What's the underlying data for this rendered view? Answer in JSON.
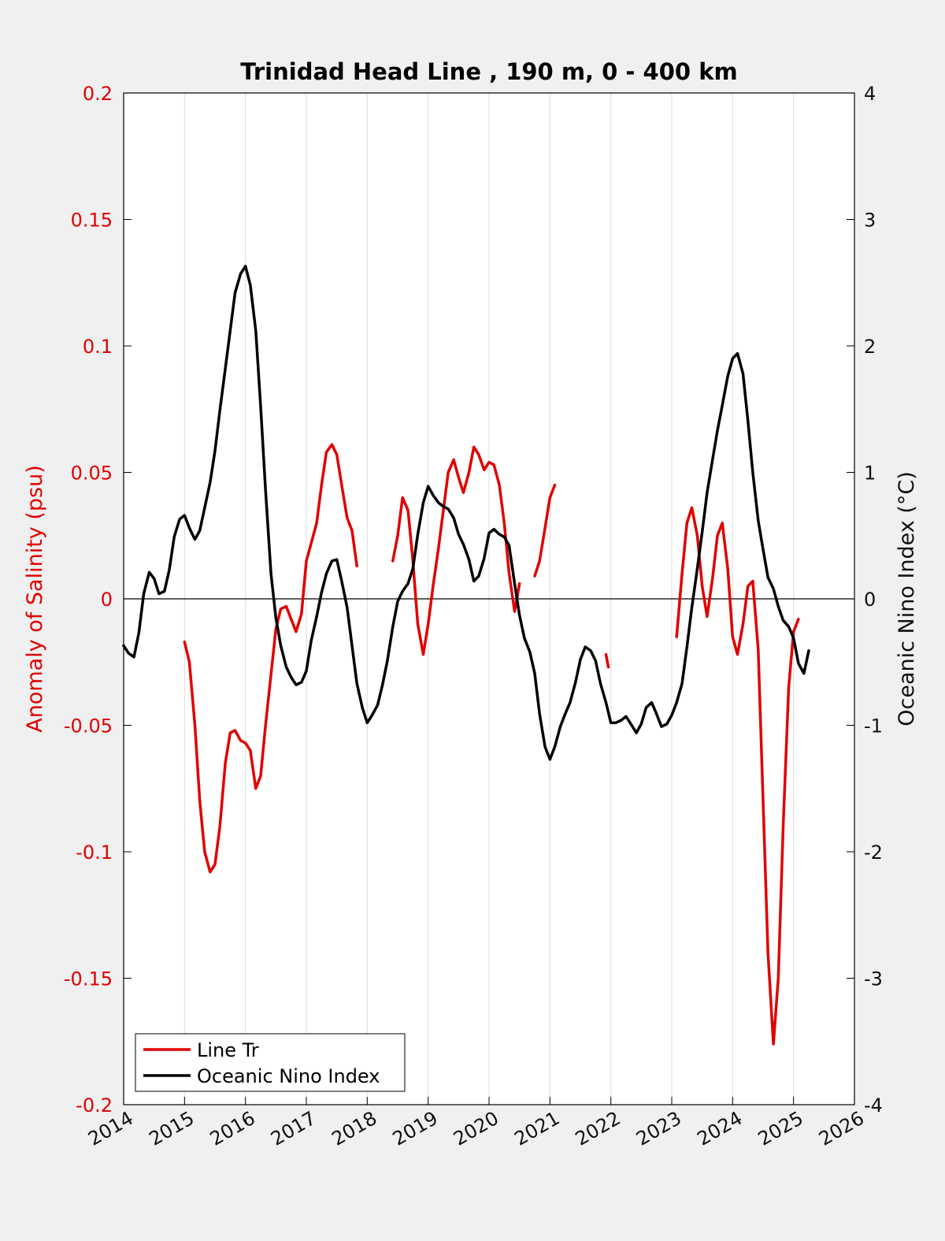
{
  "chart_data": {
    "type": "line",
    "title": "Trinidad Head Line , 190 m, 0 - 400 km",
    "ylabel_left": "Anomaly of Salinity (psu)",
    "ylabel_right": "Oceanic Nino Index (°C)",
    "xlim": [
      2014,
      2026
    ],
    "ylim_left": [
      -0.2,
      0.2
    ],
    "ylim_right": [
      -4,
      4
    ],
    "x_ticks": [
      "2014",
      "2015",
      "2016",
      "2017",
      "2018",
      "2019",
      "2020",
      "2021",
      "2022",
      "2023",
      "2024",
      "2025",
      "2026"
    ],
    "y_left_ticks": [
      "0.2",
      "0.15",
      "0.1",
      "0.05",
      "0",
      "-0.05",
      "-0.1",
      "-0.15",
      "-0.2"
    ],
    "y_right_ticks": [
      "4",
      "3",
      "2",
      "1",
      "0",
      "-1",
      "-2",
      "-3",
      "-4"
    ],
    "grid": "vertical",
    "legend_position": "bottom-left",
    "colors": {
      "salinity": "#e00000",
      "oni": "#000000",
      "left_axis": "#e00000"
    },
    "series": [
      {
        "name": "Line Tr",
        "axis": "left",
        "segments": [
          [
            [
              2015.0,
              -0.017
            ],
            [
              2015.08,
              -0.025
            ],
            [
              2015.17,
              -0.05
            ],
            [
              2015.25,
              -0.08
            ],
            [
              2015.33,
              -0.1
            ],
            [
              2015.42,
              -0.108
            ],
            [
              2015.5,
              -0.105
            ],
            [
              2015.58,
              -0.09
            ],
            [
              2015.67,
              -0.065
            ],
            [
              2015.75,
              -0.053
            ],
            [
              2015.83,
              -0.052
            ],
            [
              2015.92,
              -0.056
            ],
            [
              2016.0,
              -0.057
            ],
            [
              2016.08,
              -0.06
            ],
            [
              2016.17,
              -0.075
            ],
            [
              2016.25,
              -0.07
            ],
            [
              2016.33,
              -0.05
            ],
            [
              2016.42,
              -0.03
            ],
            [
              2016.5,
              -0.012
            ],
            [
              2016.58,
              -0.004
            ],
            [
              2016.67,
              -0.003
            ],
            [
              2016.75,
              -0.008
            ],
            [
              2016.83,
              -0.013
            ],
            [
              2016.92,
              -0.006
            ],
            [
              2017.0,
              0.015
            ],
            [
              2017.08,
              0.022
            ],
            [
              2017.17,
              0.03
            ],
            [
              2017.25,
              0.045
            ],
            [
              2017.33,
              0.058
            ],
            [
              2017.42,
              0.061
            ],
            [
              2017.5,
              0.057
            ],
            [
              2017.58,
              0.045
            ],
            [
              2017.67,
              0.032
            ],
            [
              2017.75,
              0.027
            ],
            [
              2017.83,
              0.013
            ]
          ],
          [
            [
              2018.42,
              0.015
            ],
            [
              2018.5,
              0.025
            ],
            [
              2018.58,
              0.04
            ],
            [
              2018.67,
              0.035
            ],
            [
              2018.75,
              0.015
            ],
            [
              2018.83,
              -0.01
            ],
            [
              2018.92,
              -0.022
            ],
            [
              2019.0,
              -0.01
            ],
            [
              2019.08,
              0.005
            ],
            [
              2019.17,
              0.02
            ],
            [
              2019.25,
              0.035
            ],
            [
              2019.33,
              0.05
            ],
            [
              2019.42,
              0.055
            ],
            [
              2019.5,
              0.048
            ],
            [
              2019.58,
              0.042
            ],
            [
              2019.67,
              0.05
            ],
            [
              2019.75,
              0.06
            ],
            [
              2019.83,
              0.057
            ],
            [
              2019.92,
              0.051
            ],
            [
              2020.0,
              0.054
            ],
            [
              2020.08,
              0.053
            ],
            [
              2020.17,
              0.045
            ],
            [
              2020.25,
              0.03
            ],
            [
              2020.33,
              0.01
            ],
            [
              2020.42,
              -0.005
            ],
            [
              2020.5,
              0.006
            ]
          ],
          [
            [
              2020.75,
              0.009
            ],
            [
              2020.83,
              0.015
            ],
            [
              2020.92,
              0.028
            ],
            [
              2021.0,
              0.04
            ],
            [
              2021.08,
              0.045
            ]
          ],
          [
            [
              2021.92,
              -0.022
            ],
            [
              2021.96,
              -0.027
            ]
          ],
          [
            [
              2023.08,
              -0.015
            ],
            [
              2023.17,
              0.01
            ],
            [
              2023.25,
              0.03
            ],
            [
              2023.33,
              0.036
            ],
            [
              2023.42,
              0.025
            ],
            [
              2023.5,
              0.005
            ],
            [
              2023.58,
              -0.007
            ],
            [
              2023.67,
              0.008
            ],
            [
              2023.75,
              0.025
            ],
            [
              2023.83,
              0.03
            ],
            [
              2023.92,
              0.012
            ],
            [
              2024.0,
              -0.015
            ],
            [
              2024.08,
              -0.022
            ],
            [
              2024.17,
              -0.01
            ],
            [
              2024.25,
              0.005
            ],
            [
              2024.33,
              0.007
            ],
            [
              2024.42,
              -0.02
            ],
            [
              2024.5,
              -0.08
            ],
            [
              2024.58,
              -0.14
            ],
            [
              2024.67,
              -0.176
            ],
            [
              2024.75,
              -0.15
            ],
            [
              2024.83,
              -0.09
            ],
            [
              2024.92,
              -0.035
            ],
            [
              2025.0,
              -0.013
            ],
            [
              2025.08,
              -0.008
            ]
          ]
        ]
      },
      {
        "name": "Oceanic Nino Index",
        "axis": "right",
        "segments": [
          [
            [
              2014.0,
              -0.37
            ],
            [
              2014.08,
              -0.43
            ],
            [
              2014.17,
              -0.46
            ],
            [
              2014.25,
              -0.27
            ],
            [
              2014.33,
              0.04
            ],
            [
              2014.42,
              0.21
            ],
            [
              2014.5,
              0.16
            ],
            [
              2014.58,
              0.04
            ],
            [
              2014.67,
              0.06
            ],
            [
              2014.75,
              0.23
            ],
            [
              2014.83,
              0.49
            ],
            [
              2014.92,
              0.63
            ],
            [
              2015.0,
              0.66
            ],
            [
              2015.08,
              0.56
            ],
            [
              2015.17,
              0.47
            ],
            [
              2015.25,
              0.54
            ],
            [
              2015.33,
              0.72
            ],
            [
              2015.42,
              0.92
            ],
            [
              2015.5,
              1.17
            ],
            [
              2015.58,
              1.49
            ],
            [
              2015.67,
              1.82
            ],
            [
              2015.75,
              2.12
            ],
            [
              2015.83,
              2.42
            ],
            [
              2015.92,
              2.57
            ],
            [
              2016.0,
              2.63
            ],
            [
              2016.08,
              2.48
            ],
            [
              2016.17,
              2.12
            ],
            [
              2016.25,
              1.52
            ],
            [
              2016.33,
              0.86
            ],
            [
              2016.42,
              0.2
            ],
            [
              2016.5,
              -0.15
            ],
            [
              2016.58,
              -0.37
            ],
            [
              2016.67,
              -0.54
            ],
            [
              2016.75,
              -0.62
            ],
            [
              2016.83,
              -0.68
            ],
            [
              2016.92,
              -0.66
            ],
            [
              2017.0,
              -0.57
            ],
            [
              2017.08,
              -0.33
            ],
            [
              2017.17,
              -0.14
            ],
            [
              2017.25,
              0.05
            ],
            [
              2017.33,
              0.2
            ],
            [
              2017.42,
              0.3
            ],
            [
              2017.5,
              0.31
            ],
            [
              2017.58,
              0.14
            ],
            [
              2017.67,
              -0.07
            ],
            [
              2017.75,
              -0.37
            ],
            [
              2017.83,
              -0.67
            ],
            [
              2017.92,
              -0.86
            ],
            [
              2018.0,
              -0.98
            ],
            [
              2018.08,
              -0.92
            ],
            [
              2018.17,
              -0.84
            ],
            [
              2018.25,
              -0.68
            ],
            [
              2018.33,
              -0.49
            ],
            [
              2018.42,
              -0.22
            ],
            [
              2018.5,
              -0.02
            ],
            [
              2018.58,
              0.06
            ],
            [
              2018.67,
              0.12
            ],
            [
              2018.75,
              0.24
            ],
            [
              2018.83,
              0.51
            ],
            [
              2018.92,
              0.76
            ],
            [
              2019.0,
              0.89
            ],
            [
              2019.08,
              0.82
            ],
            [
              2019.17,
              0.76
            ],
            [
              2019.25,
              0.73
            ],
            [
              2019.33,
              0.71
            ],
            [
              2019.42,
              0.64
            ],
            [
              2019.5,
              0.51
            ],
            [
              2019.58,
              0.43
            ],
            [
              2019.67,
              0.31
            ],
            [
              2019.75,
              0.14
            ],
            [
              2019.83,
              0.18
            ],
            [
              2019.92,
              0.32
            ],
            [
              2020.0,
              0.52
            ],
            [
              2020.08,
              0.55
            ],
            [
              2020.17,
              0.51
            ],
            [
              2020.25,
              0.49
            ],
            [
              2020.33,
              0.42
            ],
            [
              2020.42,
              0.12
            ],
            [
              2020.5,
              -0.13
            ],
            [
              2020.58,
              -0.31
            ],
            [
              2020.67,
              -0.42
            ],
            [
              2020.75,
              -0.59
            ],
            [
              2020.83,
              -0.91
            ],
            [
              2020.92,
              -1.17
            ],
            [
              2021.0,
              -1.27
            ],
            [
              2021.08,
              -1.17
            ],
            [
              2021.17,
              -1.01
            ],
            [
              2021.25,
              -0.91
            ],
            [
              2021.33,
              -0.82
            ],
            [
              2021.42,
              -0.66
            ],
            [
              2021.5,
              -0.48
            ],
            [
              2021.58,
              -0.38
            ],
            [
              2021.67,
              -0.41
            ],
            [
              2021.75,
              -0.49
            ],
            [
              2021.83,
              -0.67
            ],
            [
              2021.92,
              -0.82
            ],
            [
              2022.0,
              -0.98
            ],
            [
              2022.08,
              -0.98
            ],
            [
              2022.17,
              -0.96
            ],
            [
              2022.25,
              -0.93
            ],
            [
              2022.33,
              -0.99
            ],
            [
              2022.42,
              -1.06
            ],
            [
              2022.5,
              -0.99
            ],
            [
              2022.58,
              -0.86
            ],
            [
              2022.67,
              -0.82
            ],
            [
              2022.75,
              -0.91
            ],
            [
              2022.83,
              -1.01
            ],
            [
              2022.92,
              -0.99
            ],
            [
              2023.0,
              -0.92
            ],
            [
              2023.08,
              -0.82
            ],
            [
              2023.17,
              -0.67
            ],
            [
              2023.25,
              -0.38
            ],
            [
              2023.33,
              -0.07
            ],
            [
              2023.42,
              0.24
            ],
            [
              2023.5,
              0.53
            ],
            [
              2023.58,
              0.84
            ],
            [
              2023.67,
              1.1
            ],
            [
              2023.75,
              1.33
            ],
            [
              2023.83,
              1.53
            ],
            [
              2023.92,
              1.76
            ],
            [
              2024.0,
              1.9
            ],
            [
              2024.08,
              1.94
            ],
            [
              2024.17,
              1.78
            ],
            [
              2024.25,
              1.41
            ],
            [
              2024.33,
              1.0
            ],
            [
              2024.42,
              0.62
            ],
            [
              2024.5,
              0.39
            ],
            [
              2024.58,
              0.17
            ],
            [
              2024.67,
              0.08
            ],
            [
              2024.75,
              -0.06
            ],
            [
              2024.83,
              -0.17
            ],
            [
              2024.92,
              -0.22
            ],
            [
              2025.0,
              -0.31
            ],
            [
              2025.08,
              -0.51
            ],
            [
              2025.17,
              -0.59
            ],
            [
              2025.25,
              -0.41
            ]
          ]
        ]
      }
    ]
  }
}
